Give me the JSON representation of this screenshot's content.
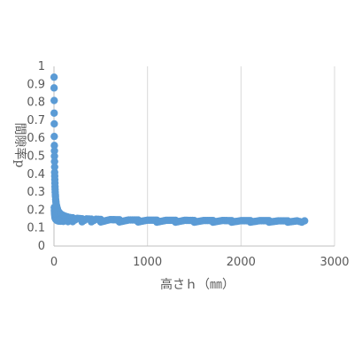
{
  "chart_data": {
    "type": "scatter",
    "title": "",
    "xlabel": "高さｈ（㎜）",
    "ylabel": "間隙率p",
    "xlim": [
      0,
      3000
    ],
    "ylim": [
      0,
      1
    ],
    "xticks": [
      "0",
      "1000",
      "2000",
      "3000"
    ],
    "yticks": [
      "0",
      "0.1",
      "0.2",
      "0.3",
      "0.4",
      "0.5",
      "0.6",
      "0.7",
      "0.8",
      "0.9",
      "1"
    ],
    "grid": "vertical",
    "legend": "none",
    "series": [
      {
        "color": "#5b9bd5",
        "points": [
          [
            1,
            0.94
          ],
          [
            1,
            0.88
          ],
          [
            2,
            0.81
          ],
          [
            2,
            0.74
          ],
          [
            3,
            0.68
          ],
          [
            3,
            0.61
          ],
          [
            4,
            0.56
          ],
          [
            5,
            0.53
          ],
          [
            5,
            0.5
          ],
          [
            6,
            0.47
          ],
          [
            7,
            0.44
          ],
          [
            7,
            0.41
          ],
          [
            8,
            0.39
          ],
          [
            9,
            0.37
          ],
          [
            10,
            0.35
          ],
          [
            11,
            0.33
          ],
          [
            12,
            0.315
          ],
          [
            13,
            0.3
          ],
          [
            15,
            0.285
          ],
          [
            16,
            0.275
          ],
          [
            18,
            0.26
          ],
          [
            20,
            0.25
          ],
          [
            22,
            0.24
          ],
          [
            25,
            0.23
          ],
          [
            28,
            0.222
          ],
          [
            32,
            0.214
          ],
          [
            36,
            0.207
          ],
          [
            40,
            0.2
          ],
          [
            45,
            0.195
          ],
          [
            50,
            0.19
          ],
          [
            60,
            0.184
          ],
          [
            70,
            0.179
          ],
          [
            80,
            0.175
          ],
          [
            90,
            0.172
          ],
          [
            100,
            0.17
          ],
          [
            120,
            0.166
          ],
          [
            140,
            0.163
          ],
          [
            160,
            0.16
          ],
          [
            180,
            0.158
          ],
          [
            200,
            0.157
          ],
          [
            250,
            0.154
          ],
          [
            300,
            0.152
          ],
          [
            350,
            0.151
          ],
          [
            400,
            0.15
          ],
          [
            450,
            0.149
          ],
          [
            500,
            0.148
          ],
          [
            600,
            0.147
          ],
          [
            700,
            0.146
          ],
          [
            800,
            0.145
          ],
          [
            900,
            0.145
          ],
          [
            1000,
            0.144
          ],
          [
            1100,
            0.144
          ],
          [
            1200,
            0.143
          ],
          [
            1300,
            0.143
          ],
          [
            1400,
            0.143
          ],
          [
            1500,
            0.142
          ],
          [
            1600,
            0.142
          ],
          [
            1700,
            0.142
          ],
          [
            1800,
            0.142
          ],
          [
            1900,
            0.141
          ],
          [
            2000,
            0.141
          ],
          [
            2100,
            0.141
          ],
          [
            2200,
            0.141
          ],
          [
            2300,
            0.141
          ],
          [
            2400,
            0.14
          ],
          [
            2500,
            0.14
          ],
          [
            2600,
            0.14
          ],
          [
            2680,
            0.14
          ],
          [
            3,
            0.215
          ],
          [
            4,
            0.2
          ],
          [
            5,
            0.19
          ],
          [
            6,
            0.18
          ],
          [
            8,
            0.17
          ],
          [
            10,
            0.162
          ],
          [
            12,
            0.156
          ],
          [
            15,
            0.152
          ],
          [
            20,
            0.148
          ],
          [
            25,
            0.145
          ],
          [
            30,
            0.143
          ],
          [
            40,
            0.14
          ],
          [
            50,
            0.139
          ],
          [
            70,
            0.138
          ],
          [
            100,
            0.137
          ],
          [
            150,
            0.136
          ],
          [
            200,
            0.136
          ],
          [
            300,
            0.135
          ],
          [
            400,
            0.135
          ],
          [
            500,
            0.134
          ],
          [
            700,
            0.134
          ],
          [
            900,
            0.134
          ],
          [
            1100,
            0.133
          ],
          [
            1300,
            0.133
          ],
          [
            1500,
            0.133
          ],
          [
            1700,
            0.133
          ],
          [
            1900,
            0.133
          ],
          [
            2100,
            0.133
          ],
          [
            2300,
            0.133
          ],
          [
            2500,
            0.133
          ],
          [
            2650,
            0.133
          ]
        ]
      }
    ]
  }
}
